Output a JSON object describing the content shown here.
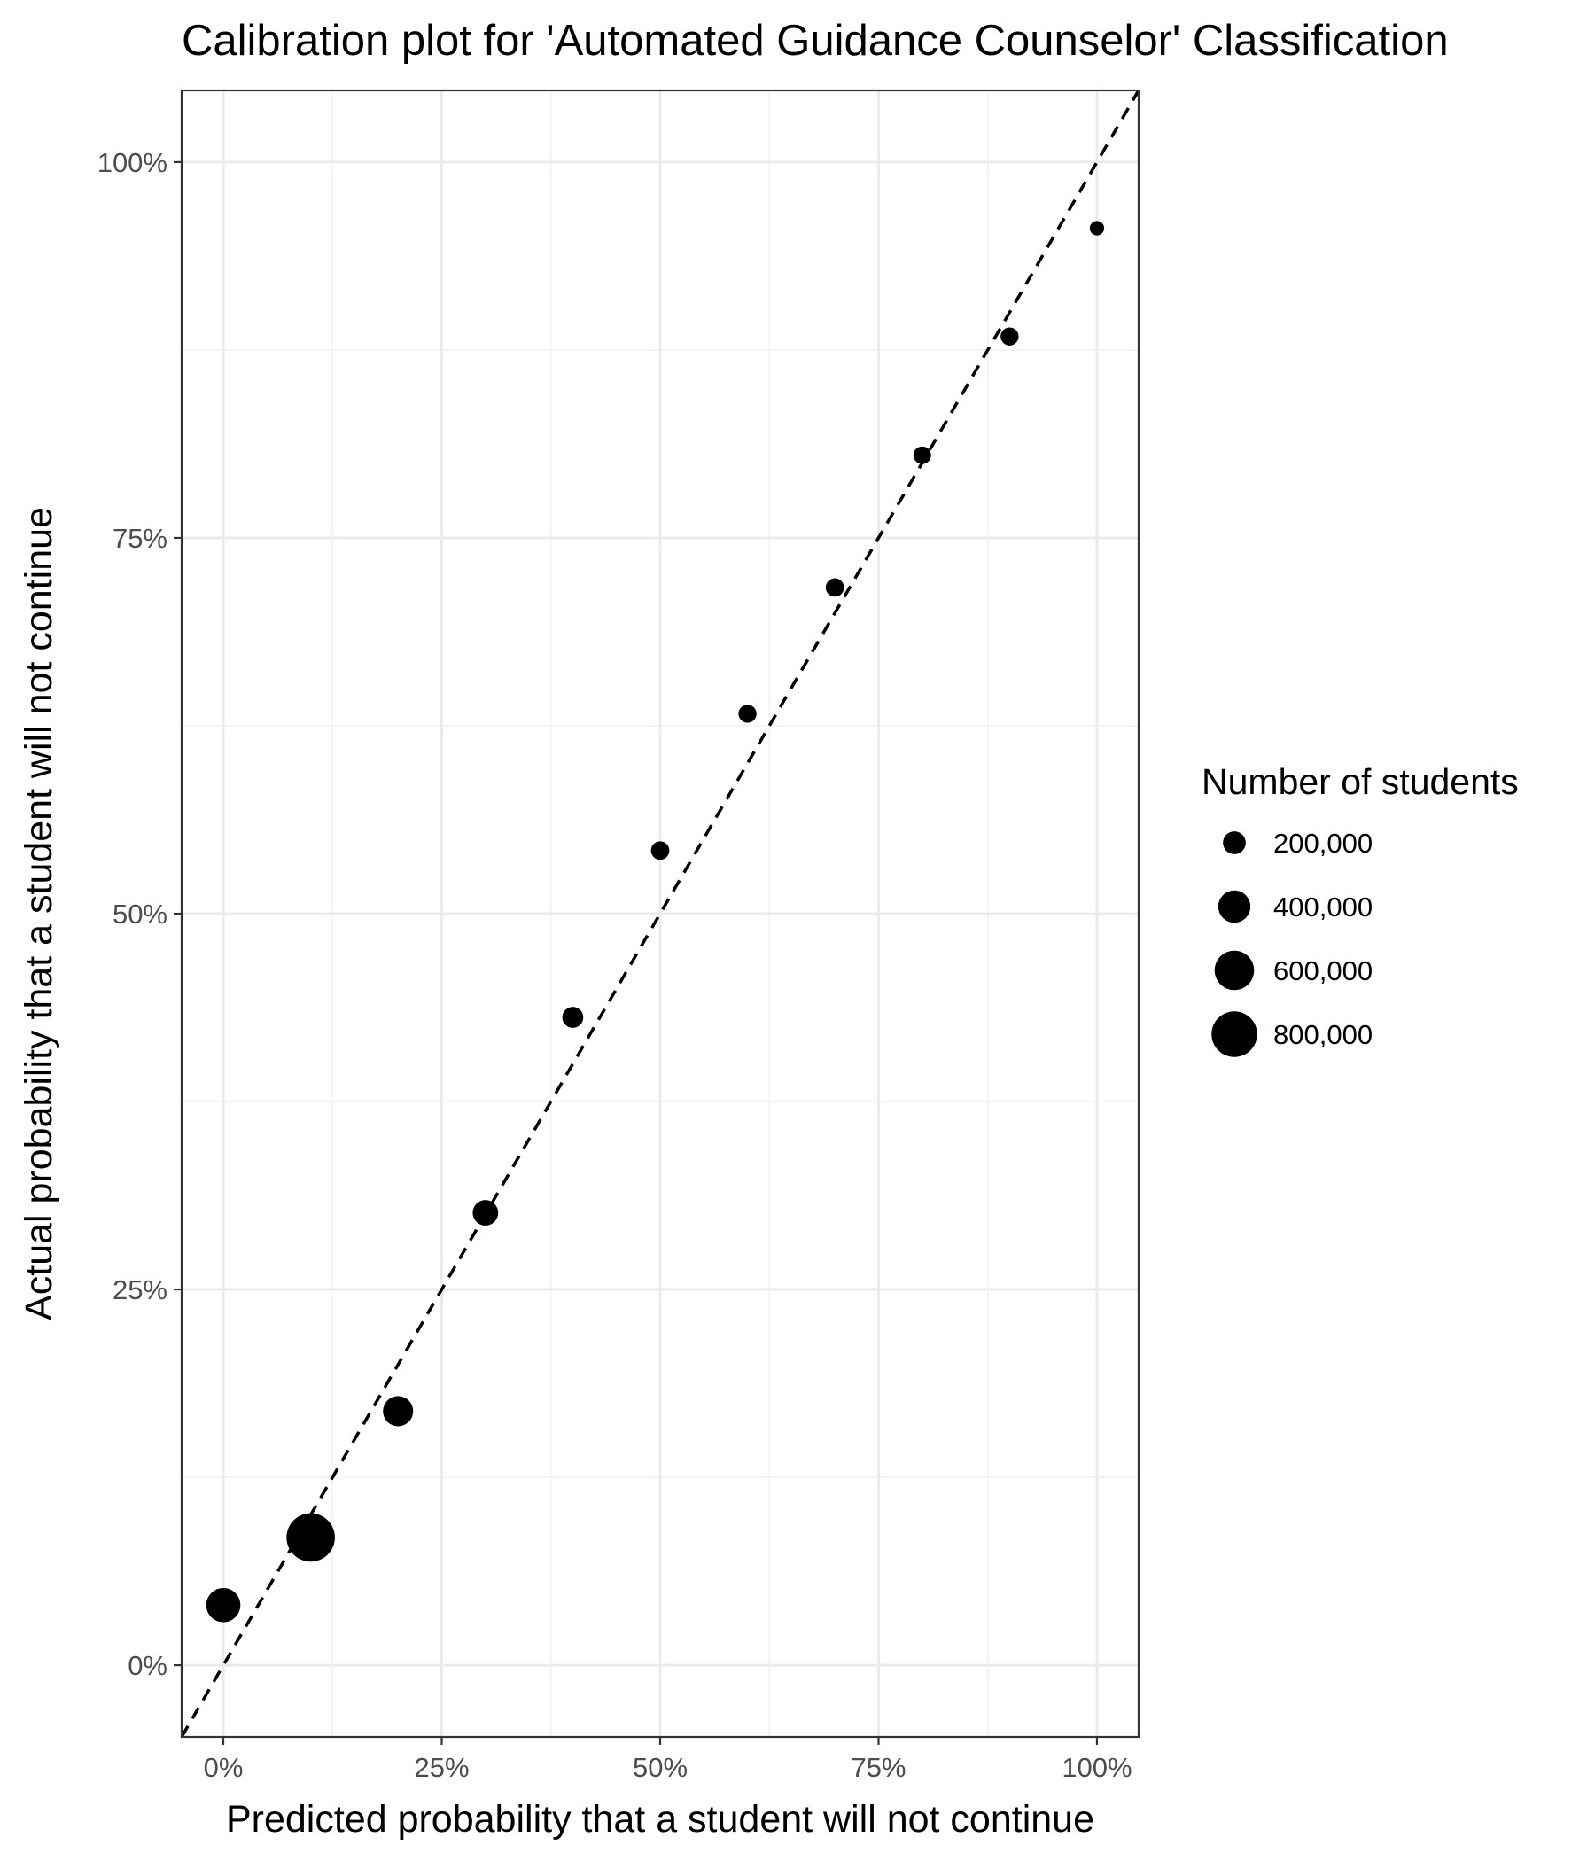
{
  "chart_data": {
    "type": "scatter",
    "title": "Calibration plot for 'Automated Guidance Counselor' Classification",
    "xlabel": "Predicted probability that a student will not continue",
    "ylabel": "Actual probability that a student will not continue",
    "xlim": [
      -0.0477,
      1.0477
    ],
    "ylim": [
      -0.0477,
      1.0477
    ],
    "x_ticks": [
      0,
      0.25,
      0.5,
      0.75,
      1.0
    ],
    "x_tick_labels": [
      "0%",
      "25%",
      "50%",
      "75%",
      "100%"
    ],
    "y_ticks": [
      0,
      0.25,
      0.5,
      0.75,
      1.0
    ],
    "y_tick_labels": [
      "0%",
      "25%",
      "50%",
      "75%",
      "100%"
    ],
    "grid": true,
    "reference_line": {
      "slope": 1,
      "intercept": 0,
      "style": "dashed"
    },
    "points": [
      {
        "x": 0.0,
        "y": 0.04,
        "students": 450000
      },
      {
        "x": 0.1,
        "y": 0.085,
        "students": 900000
      },
      {
        "x": 0.2,
        "y": 0.169,
        "students": 350000
      },
      {
        "x": 0.3,
        "y": 0.301,
        "students": 250000
      },
      {
        "x": 0.4,
        "y": 0.431,
        "students": 170000
      },
      {
        "x": 0.5,
        "y": 0.542,
        "students": 130000
      },
      {
        "x": 0.6,
        "y": 0.633,
        "students": 125000
      },
      {
        "x": 0.7,
        "y": 0.717,
        "students": 130000
      },
      {
        "x": 0.8,
        "y": 0.805,
        "students": 120000
      },
      {
        "x": 0.9,
        "y": 0.884,
        "students": 125000
      },
      {
        "x": 1.0,
        "y": 0.956,
        "students": 80000
      }
    ],
    "legend": {
      "title": "Number of students",
      "position": "right",
      "entries": [
        {
          "label": "200,000",
          "value": 200000
        },
        {
          "label": "400,000",
          "value": 400000
        },
        {
          "label": "600,000",
          "value": 600000
        },
        {
          "label": "800,000",
          "value": 800000
        }
      ]
    },
    "colors": {
      "points": "#000000",
      "panel_border": "#333333",
      "grid_major": "#ebebeb",
      "grid_minor": "#f2f2f2",
      "tick_text": "#4d4d4d"
    }
  }
}
